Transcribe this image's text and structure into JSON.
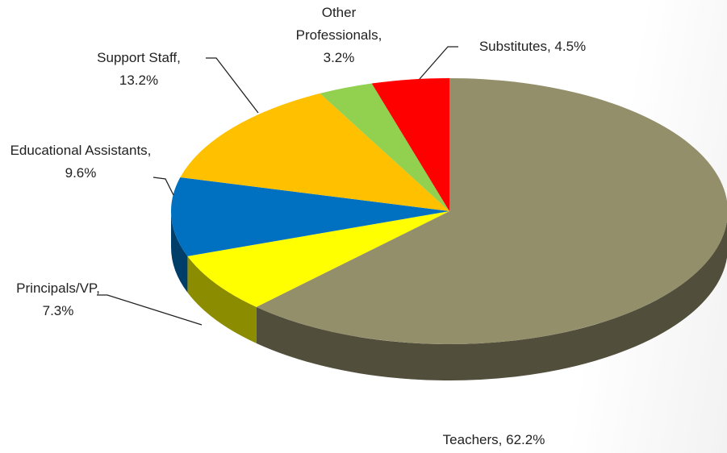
{
  "chart_data": {
    "type": "pie",
    "categories": [
      "Teachers,",
      "Principals/VP,",
      "Educational Assistants,",
      "Support Staff,",
      "Other Professionals,",
      "Substitutes,"
    ],
    "values": [
      62.2,
      7.3,
      9.6,
      13.2,
      3.2,
      4.5
    ],
    "value_labels": [
      "62.2%",
      "7.3%",
      "9.6%",
      "13.2%",
      "3.2%",
      "4.5%"
    ],
    "colors": [
      "#948f6b",
      "#ffff00",
      "#0070c0",
      "#ffc000",
      "#92d050",
      "#ff0000"
    ]
  }
}
